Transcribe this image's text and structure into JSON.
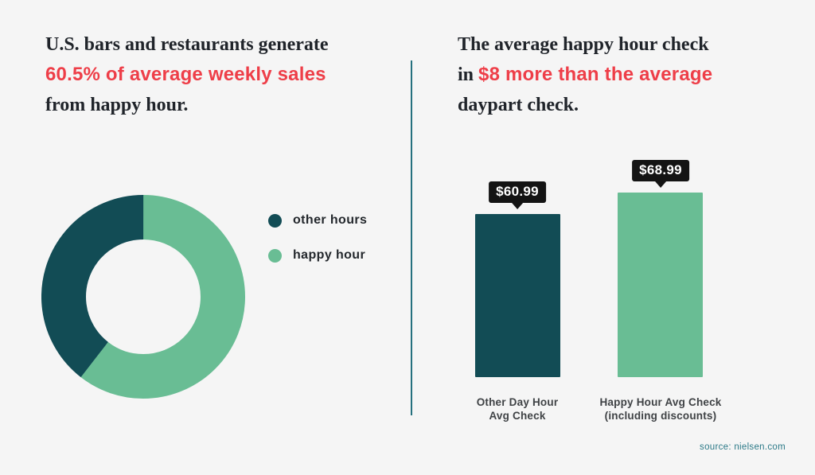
{
  "colors": {
    "background": "#f5f5f5",
    "dark_teal": "#124c55",
    "light_green": "#69bd94",
    "accent_red": "#ee3e48",
    "headline_text": "#20242a",
    "axis_label_text": "#3f4245",
    "tag_background": "#141414",
    "tag_text": "#ffffff",
    "divider": "#26717f",
    "source_text": "#2d7a88"
  },
  "left_panel": {
    "title": {
      "line1": "U.S. bars and restaurants generate",
      "line2": "60.5% of average weekly sales",
      "line3": "from happy hour."
    },
    "legend": [
      {
        "label": "other hours",
        "color": "#124c55"
      },
      {
        "label": "happy hour",
        "color": "#69bd94"
      }
    ]
  },
  "right_panel": {
    "title": {
      "line1": "The average happy hour check",
      "line2_prefix": "in ",
      "line2": "$8 more than the average",
      "line3": "daypart check."
    },
    "bars": [
      {
        "value_label": "$60.99",
        "label_line1": "Other Day Hour",
        "label_line2": "Avg Check"
      },
      {
        "value_label": "$68.99",
        "label_line1": "Happy Hour Avg Check",
        "label_line2": "(including discounts)"
      }
    ]
  },
  "source": "source: nielsen.com",
  "chart_data": [
    {
      "type": "pie",
      "subtype": "donut",
      "title": "U.S. bars and restaurants generate 60.5% of average weekly sales from happy hour.",
      "labels": [
        "happy hour",
        "other hours"
      ],
      "values": [
        60.5,
        39.5
      ],
      "colors": [
        "#69bd94",
        "#124c55"
      ],
      "start_angle_deg": 0,
      "direction": "clockwise",
      "inner_radius_ratio": 0.56,
      "legend_position": "right"
    },
    {
      "type": "bar",
      "title": "The average happy hour check in $8 more than the average daypart check.",
      "categories": [
        "Other Day Hour Avg Check",
        "Happy Hour Avg Check (including discounts)"
      ],
      "values": [
        60.99,
        68.99
      ],
      "data_labels": [
        "$60.99",
        "$68.99"
      ],
      "colors": [
        "#124c55",
        "#69bd94"
      ],
      "xlabel": "",
      "ylabel": "",
      "ylim": [
        0,
        75
      ],
      "grid": false,
      "axes_visible": false,
      "legend_position": "none"
    }
  ]
}
